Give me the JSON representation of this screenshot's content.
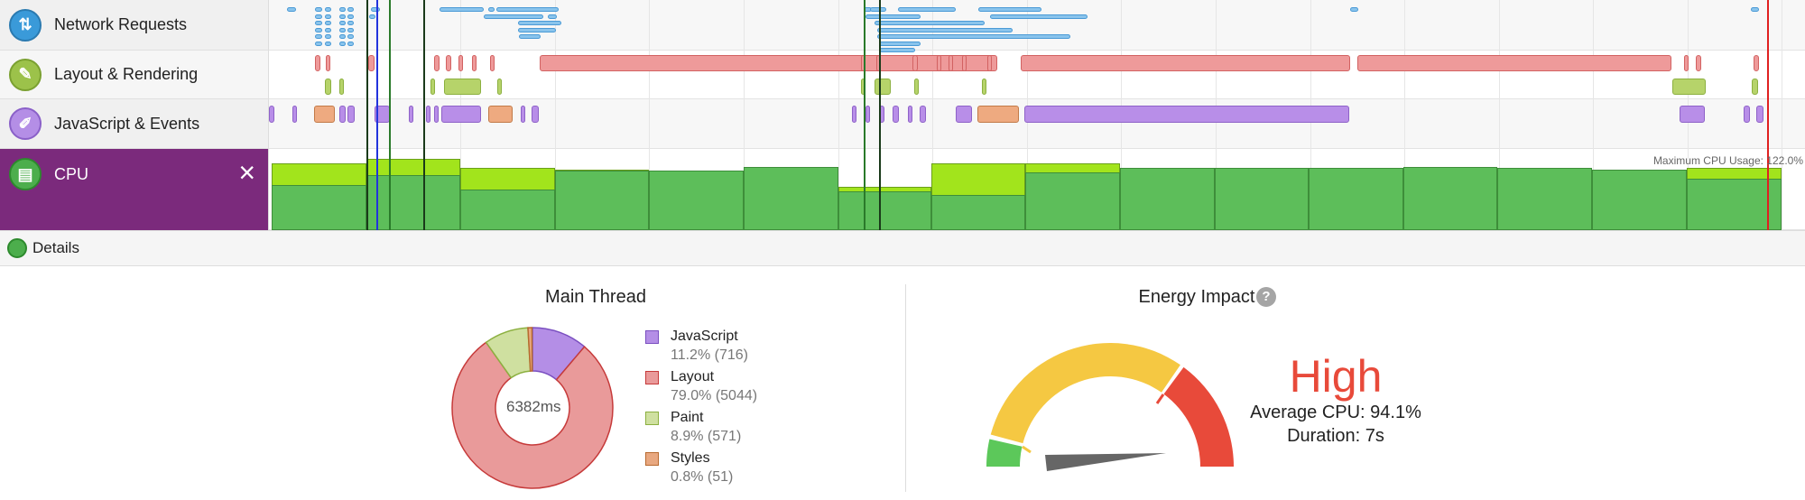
{
  "tracks": [
    {
      "label": "Network Requests",
      "icon": "network-arrows-icon",
      "color": "#3a9ad9"
    },
    {
      "label": "Layout & Rendering",
      "icon": "paintbrush-icon",
      "color": "#8cb93c"
    },
    {
      "label": "JavaScript & Events",
      "icon": "script-icon",
      "color": "#a77fe0"
    },
    {
      "label": "CPU",
      "icon": "cpu-chip-icon",
      "color": "#4cae4c",
      "selected": true
    }
  ],
  "cpu": {
    "max_label": "Maximum CPU Usage: 122.0%",
    "close": "×"
  },
  "details": {
    "label": "Details"
  },
  "main_thread": {
    "title": "Main Thread",
    "total": "6382ms",
    "segments": [
      {
        "name": "JavaScript",
        "value": "11.2% (716)",
        "percent": 11.2,
        "fill": "#b48ee6",
        "stroke": "#7a4fc0"
      },
      {
        "name": "Layout",
        "value": "79.0% (5044)",
        "percent": 79.0,
        "fill": "#e99a9a",
        "stroke": "#c63a3a"
      },
      {
        "name": "Paint",
        "value": "8.9% (571)",
        "percent": 8.9,
        "fill": "#cfe0a0",
        "stroke": "#8cb040"
      },
      {
        "name": "Styles",
        "value": "0.8% (51)",
        "percent": 0.8,
        "fill": "#e8a880",
        "stroke": "#b86a30"
      }
    ]
  },
  "energy": {
    "title": "Energy Impact",
    "help": "?",
    "level": "High",
    "level_color": "#e84a3a",
    "avg_cpu": "Average CPU: 94.1%",
    "duration": "Duration: 7s"
  }
}
